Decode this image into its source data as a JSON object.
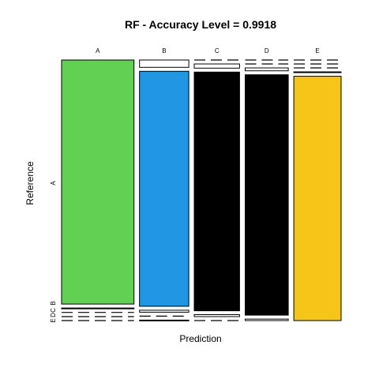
{
  "chart_data": {
    "type": "mosaic",
    "title": "RF - Accuracy Level = 0.9918",
    "xlabel": "Prediction",
    "ylabel": "Reference",
    "prediction_levels": [
      "A",
      "B",
      "C",
      "D",
      "E"
    ],
    "reference_levels": [
      "A",
      "B",
      "C",
      "D",
      "E"
    ],
    "reference_tick_labels": [
      "A",
      "B",
      "C",
      "D",
      "E"
    ],
    "column_widths": [
      0.297,
      0.202,
      0.186,
      0.177,
      0.194
    ],
    "proportions": [
      [
        0.997,
        0.002,
        0.001,
        0.0,
        0.0
      ],
      [
        0.03,
        0.96,
        0.008,
        0.0,
        0.002
      ],
      [
        0.0,
        0.017,
        0.975,
        0.008,
        0.0
      ],
      [
        0.0,
        0.0,
        0.012,
        0.982,
        0.006
      ],
      [
        0.0,
        0.0,
        0.0,
        0.002,
        0.998
      ]
    ],
    "colors": [
      "#62D153",
      "#2196E3",
      "#000000",
      "#000000",
      "#F5C518"
    ],
    "highlight": "diagonal"
  }
}
